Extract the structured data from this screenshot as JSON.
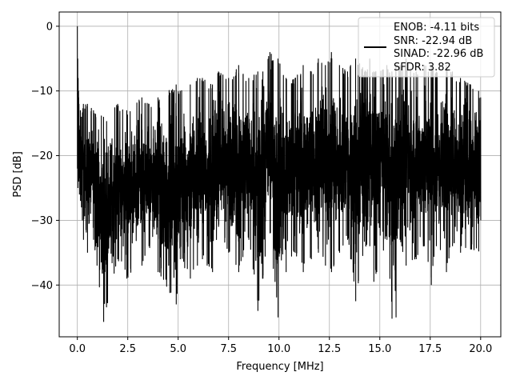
{
  "chart_data": {
    "type": "line",
    "title": "",
    "xlabel": "Frequency [MHz]",
    "ylabel": "PSD [dB]",
    "xlim": [
      -0.9,
      21.0
    ],
    "ylim": [
      -48,
      2.2
    ],
    "grid": true,
    "legend_position": "top-right",
    "x_ticks": [
      {
        "value": 0,
        "label": "0.0"
      },
      {
        "value": 2.5,
        "label": "2.5"
      },
      {
        "value": 5,
        "label": "5.0"
      },
      {
        "value": 7.5,
        "label": "7.5"
      },
      {
        "value": 10,
        "label": "10.0"
      },
      {
        "value": 12.5,
        "label": "12.5"
      },
      {
        "value": 15,
        "label": "15.0"
      },
      {
        "value": 17.5,
        "label": "17.5"
      },
      {
        "value": 20,
        "label": "20.0"
      }
    ],
    "y_ticks": [
      {
        "value": 0,
        "label": "0"
      },
      {
        "value": -10,
        "label": "−10"
      },
      {
        "value": -20,
        "label": "−20"
      },
      {
        "value": -30,
        "label": "−30"
      },
      {
        "value": -40,
        "label": "−40"
      }
    ],
    "series": [
      {
        "color": "#000000",
        "legend_lines": [
          "ENOB: -4.11 bits",
          "SNR: -22.94 dB",
          "SINAD: -22.96 dB",
          "SFDR: 3.82"
        ],
        "x": [
          0.0,
          0.02,
          0.04,
          0.06,
          0.08,
          0.1,
          0.15,
          0.2,
          0.3,
          0.5,
          0.8,
          1.3,
          2.0,
          2.45,
          3.2,
          3.55,
          4.0,
          4.9,
          5.1,
          5.6,
          5.95,
          6.2,
          6.7,
          7.0,
          7.5,
          8.0,
          8.5,
          8.95,
          9.2,
          9.55,
          9.95,
          10.35,
          10.8,
          11.2,
          11.6,
          11.95,
          12.3,
          12.6,
          13.0,
          13.4,
          13.55,
          13.8,
          14.3,
          14.5,
          14.7,
          15.35,
          15.6,
          15.8,
          16.0,
          16.3,
          16.8,
          17.2,
          17.55,
          17.8,
          18.3,
          18.6,
          19.0,
          19.5,
          19.9,
          20.0
        ],
        "lower": [
          -22,
          -25,
          -22,
          -24,
          -20,
          -26,
          -27,
          -28,
          -33,
          -35,
          -33,
          -45.7,
          -36,
          -39,
          -37,
          -34,
          -38,
          -43,
          -36,
          -39,
          -37,
          -36,
          -38,
          -31,
          -35,
          -38,
          -33,
          -44,
          -39,
          -32,
          -45,
          -38,
          -35,
          -38,
          -36,
          -35,
          -37,
          -38,
          -35,
          -33,
          -36,
          -42.5,
          -34,
          -34,
          -39.5,
          -33,
          -45.2,
          -45,
          -33,
          -37,
          -36,
          -34,
          -40,
          -34,
          -38,
          -34,
          -35,
          -34.5,
          -34.8,
          -30
        ],
        "upper": [
          0,
          -5,
          -8,
          -10,
          -12,
          -16,
          -13,
          -14,
          -12,
          -12,
          -13,
          -14,
          -12,
          -13,
          -11,
          -12,
          -11,
          -9,
          -10,
          -9,
          -8,
          -8,
          -9,
          -7,
          -8,
          -6,
          -8,
          -7,
          -7,
          -4,
          -5,
          -8,
          -8,
          -6,
          -7,
          -5,
          -6,
          -4,
          -6,
          -7,
          -6,
          -5,
          -7,
          -5,
          -7,
          -6,
          -7,
          -6,
          -6,
          -5,
          -7,
          -6,
          -6,
          -7,
          -6,
          -7,
          -8,
          -9,
          -10,
          -11
        ]
      }
    ]
  }
}
